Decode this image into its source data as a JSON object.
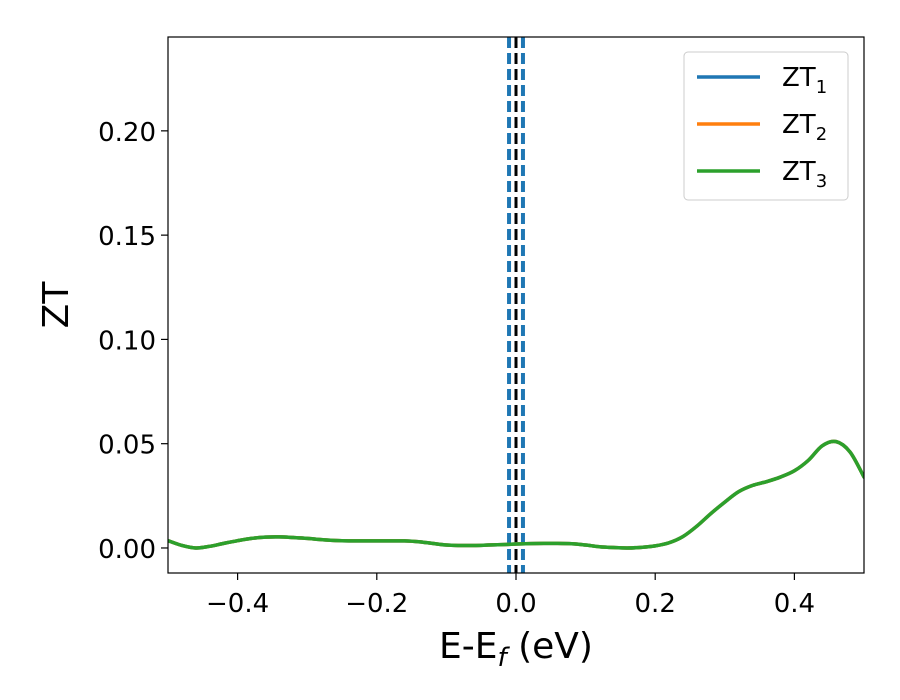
{
  "chart_data": {
    "type": "line",
    "title": "",
    "xlabel": {
      "base": "E-E",
      "sub": "f",
      "suffix": " (eV)"
    },
    "ylabel": "ZT",
    "xlim": [
      -0.5,
      0.5
    ],
    "ylim": [
      -0.012,
      0.245
    ],
    "xticks": [
      -0.4,
      -0.2,
      0.0,
      0.2,
      0.4
    ],
    "xtick_labels": [
      "−0.4",
      "−0.2",
      "0.0",
      "0.2",
      "0.4"
    ],
    "yticks": [
      0.0,
      0.05,
      0.1,
      0.15,
      0.2
    ],
    "ytick_labels": [
      "0.00",
      "0.05",
      "0.10",
      "0.15",
      "0.20"
    ],
    "grid": false,
    "legend_position": "top-right",
    "vertical_lines": [
      {
        "x": 0.0,
        "color": "#000000",
        "style": "dashed"
      },
      {
        "x": -0.01,
        "color": "#1f77b4",
        "style": "dashed"
      },
      {
        "x": 0.01,
        "color": "#1f77b4",
        "style": "dashed"
      }
    ],
    "x": [
      -0.5,
      -0.48,
      -0.46,
      -0.44,
      -0.42,
      -0.4,
      -0.38,
      -0.36,
      -0.34,
      -0.32,
      -0.3,
      -0.28,
      -0.26,
      -0.24,
      -0.22,
      -0.2,
      -0.18,
      -0.16,
      -0.14,
      -0.12,
      -0.1,
      -0.08,
      -0.06,
      -0.04,
      -0.02,
      0.0,
      0.02,
      0.04,
      0.06,
      0.08,
      0.1,
      0.12,
      0.14,
      0.16,
      0.18,
      0.2,
      0.22,
      0.24,
      0.26,
      0.28,
      0.3,
      0.32,
      0.34,
      0.36,
      0.38,
      0.4,
      0.42,
      0.44,
      0.46,
      0.48,
      0.5
    ],
    "series": [
      {
        "name": {
          "base": "ZT",
          "sub": "1"
        },
        "color": "#1f77b4",
        "values": [
          0.0035,
          0.0012,
          0.0,
          0.0008,
          0.0022,
          0.0035,
          0.0046,
          0.0052,
          0.0053,
          0.005,
          0.0046,
          0.004,
          0.0036,
          0.0034,
          0.0034,
          0.0034,
          0.0034,
          0.0034,
          0.003,
          0.0022,
          0.0014,
          0.0012,
          0.0012,
          0.0014,
          0.0016,
          0.0019,
          0.0021,
          0.0022,
          0.0022,
          0.002,
          0.0014,
          0.0006,
          0.0002,
          0.0,
          0.0003,
          0.001,
          0.0025,
          0.0055,
          0.0105,
          0.0165,
          0.022,
          0.027,
          0.03,
          0.0318,
          0.034,
          0.037,
          0.042,
          0.049,
          0.051,
          0.046,
          0.034
        ]
      },
      {
        "name": {
          "base": "ZT",
          "sub": "2"
        },
        "color": "#ff7f0e",
        "values": [
          0.0035,
          0.0012,
          0.0,
          0.0008,
          0.0022,
          0.0035,
          0.0046,
          0.0052,
          0.0053,
          0.005,
          0.0046,
          0.004,
          0.0036,
          0.0034,
          0.0034,
          0.0034,
          0.0034,
          0.0034,
          0.003,
          0.0022,
          0.0014,
          0.0012,
          0.0012,
          0.0014,
          0.0016,
          0.0019,
          0.0021,
          0.0022,
          0.0022,
          0.002,
          0.0014,
          0.0006,
          0.0002,
          0.0,
          0.0003,
          0.001,
          0.0025,
          0.0055,
          0.0105,
          0.0165,
          0.022,
          0.027,
          0.03,
          0.0318,
          0.034,
          0.037,
          0.042,
          0.049,
          0.051,
          0.046,
          0.034
        ]
      },
      {
        "name": {
          "base": "ZT",
          "sub": "3"
        },
        "color": "#2ca02c",
        "values": [
          0.0035,
          0.0012,
          0.0,
          0.0008,
          0.0022,
          0.0035,
          0.0046,
          0.0052,
          0.0053,
          0.005,
          0.0046,
          0.004,
          0.0036,
          0.0034,
          0.0034,
          0.0034,
          0.0034,
          0.0034,
          0.003,
          0.0022,
          0.0014,
          0.0012,
          0.0012,
          0.0014,
          0.0016,
          0.0019,
          0.0021,
          0.0022,
          0.0022,
          0.002,
          0.0014,
          0.0006,
          0.0002,
          0.0,
          0.0003,
          0.001,
          0.0025,
          0.0055,
          0.0105,
          0.0165,
          0.022,
          0.027,
          0.03,
          0.0318,
          0.034,
          0.037,
          0.042,
          0.049,
          0.051,
          0.046,
          0.034
        ]
      }
    ]
  }
}
